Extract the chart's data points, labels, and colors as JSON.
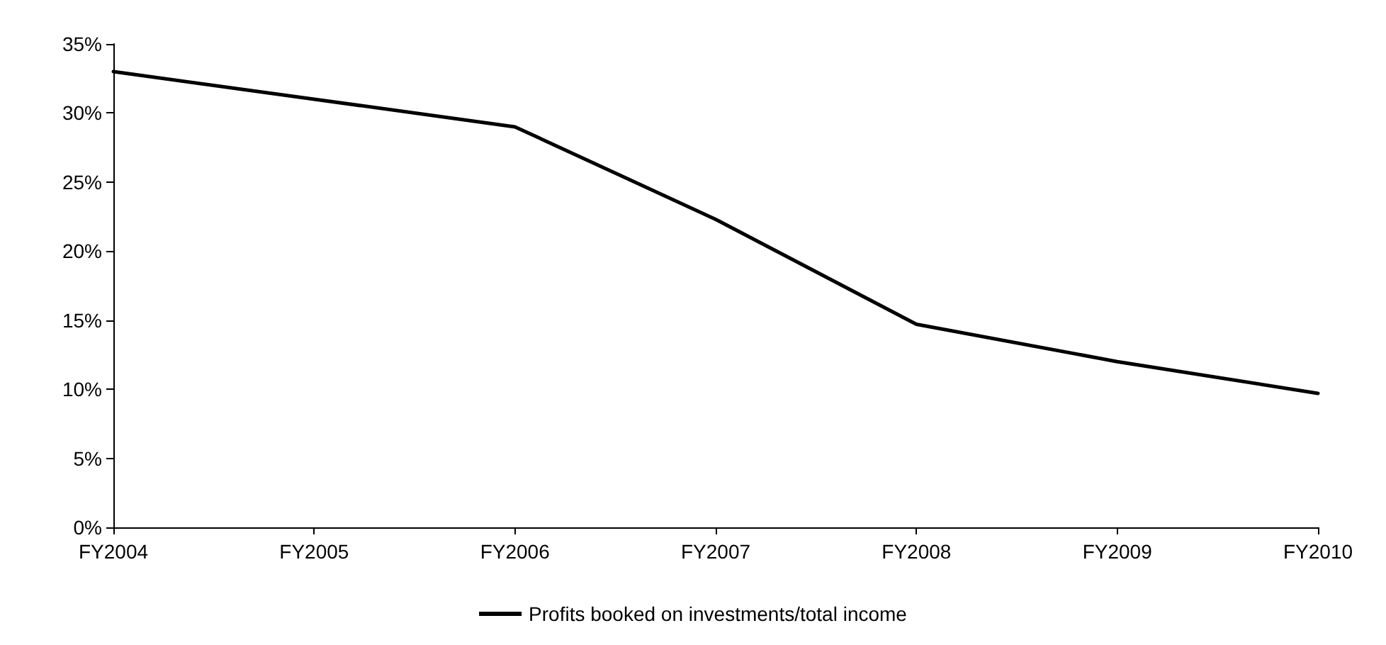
{
  "chart_data": {
    "type": "line",
    "categories": [
      "FY2004",
      "FY2005",
      "FY2006",
      "FY2007",
      "FY2008",
      "FY2009",
      "FY2010"
    ],
    "series": [
      {
        "name": "Profits booked on investments/total income",
        "color": "#000000",
        "values": [
          33,
          31,
          29,
          22.3,
          14.7,
          12,
          9.7
        ]
      }
    ],
    "ylim": [
      0,
      35
    ],
    "yticks": [
      {
        "value": 0,
        "label": "0%"
      },
      {
        "value": 5,
        "label": "5%"
      },
      {
        "value": 10,
        "label": "10%"
      },
      {
        "value": 15,
        "label": "15%"
      },
      {
        "value": 20,
        "label": "20%"
      },
      {
        "value": 25,
        "label": "25%"
      },
      {
        "value": 30,
        "label": "30%"
      },
      {
        "value": 35,
        "label": "35%"
      }
    ],
    "grid": false,
    "legend": "bottom",
    "marker": "none",
    "line_style": "solid"
  }
}
